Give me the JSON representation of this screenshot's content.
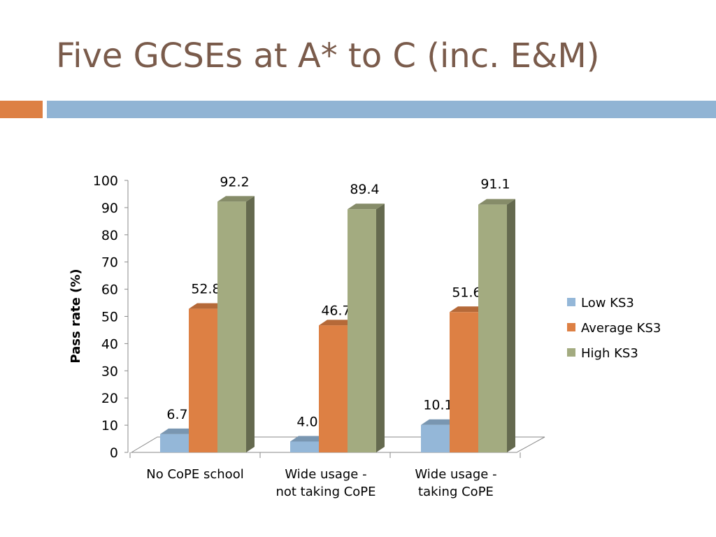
{
  "slide": {
    "title": "Five GCSEs at A* to C (inc. E&M)",
    "colors": {
      "title": "#7a5b4b",
      "accent_orange": "#dd8044",
      "accent_blue": "#91b4d4"
    }
  },
  "chart_data": {
    "type": "bar",
    "title": "",
    "categories": [
      [
        "No CoPE school"
      ],
      [
        "Wide usage -",
        "not taking CoPE"
      ],
      [
        "Wide usage -",
        "taking CoPE"
      ]
    ],
    "series": [
      {
        "name": "Low KS3",
        "values": [
          6.7,
          4.0,
          10.1
        ],
        "color": "#94b7d8"
      },
      {
        "name": "Average KS3",
        "values": [
          52.8,
          46.7,
          51.6
        ],
        "color": "#dd8044"
      },
      {
        "name": "High KS3",
        "values": [
          92.2,
          89.4,
          91.1
        ],
        "color": "#a3ab80"
      }
    ],
    "xlabel": "",
    "ylabel": "Pass rate (%)",
    "ylim": [
      0,
      100
    ],
    "yticks": [
      0,
      10,
      20,
      30,
      40,
      50,
      60,
      70,
      80,
      90,
      100
    ],
    "legend_position": "right",
    "data_labels": true,
    "grid": false
  }
}
